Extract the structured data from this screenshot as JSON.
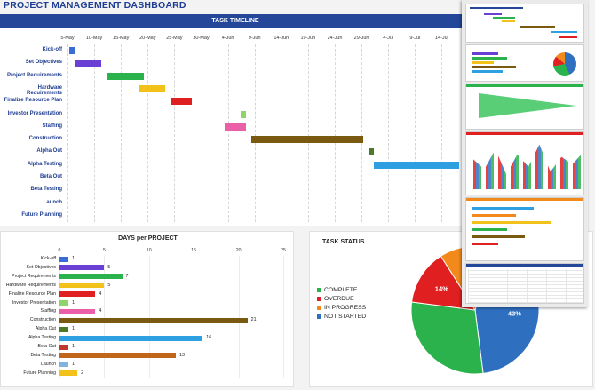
{
  "dashboard": {
    "title": "PROJECT MANAGEMENT DASHBOARD"
  },
  "timeline": {
    "header": "TASK TIMELINE",
    "dates": [
      "5-May",
      "10-May",
      "15-May",
      "20-May",
      "25-May",
      "30-May",
      "4-Jun",
      "9-Jun",
      "14-Jun",
      "19-Jun",
      "24-Jun",
      "29-Jun",
      "4-Jul",
      "9-Jul",
      "14-Jul"
    ],
    "tasks": [
      {
        "label": "Kick-off",
        "start_day": 1,
        "days": 1,
        "color": "#3a6bd6"
      },
      {
        "label": "Set Objectives",
        "start_day": 2,
        "days": 5,
        "color": "#6a3fd4"
      },
      {
        "label": "Project Requirements",
        "start_day": 8,
        "days": 7,
        "color": "#2bb24c"
      },
      {
        "label": "Hardware Requirements",
        "start_day": 14,
        "days": 5,
        "color": "#f2c21b"
      },
      {
        "label": "Finalize Resource Plan",
        "start_day": 20,
        "days": 4,
        "color": "#e02020"
      },
      {
        "label": "Investor Presentation",
        "start_day": 33,
        "days": 1,
        "color": "#8fd46b"
      },
      {
        "label": "Staffing",
        "start_day": 30,
        "days": 4,
        "color": "#ea5fa8"
      },
      {
        "label": "Construction",
        "start_day": 35,
        "days": 21,
        "color": "#7a5a10"
      },
      {
        "label": "Alpha Out",
        "start_day": 57,
        "days": 1,
        "color": "#4a7a2a"
      },
      {
        "label": "Alpha Testing",
        "start_day": 58,
        "days": 16,
        "color": "#2e9fe0"
      },
      {
        "label": "Beta Out",
        "start_day": 75,
        "days": 1,
        "color": "#c0392b"
      },
      {
        "label": "Beta Testing",
        "start_day": 0,
        "days": 0,
        "color": "#c0651a"
      },
      {
        "label": "Launch",
        "start_day": 0,
        "days": 0,
        "color": "#7fb3e0"
      },
      {
        "label": "Future Planning",
        "start_day": 0,
        "days": 0,
        "color": "#f2c21b"
      }
    ]
  },
  "days_per_project": {
    "title": "DAYS per PROJECT",
    "ticks": [
      "0",
      "5",
      "10",
      "15",
      "20",
      "25"
    ],
    "chart_data": {
      "type": "bar",
      "categories": [
        "Kick-off",
        "Set Objectives",
        "Project Requirements",
        "Hardware Requirements",
        "Finalize Resource Plan",
        "Investor Presentation",
        "Staffing",
        "Construction",
        "Alpha Out",
        "Alpha Testing",
        "Beta Out",
        "Beta Testing",
        "Launch",
        "Future Planning"
      ],
      "values": [
        1,
        5,
        7,
        5,
        4,
        1,
        4,
        21,
        1,
        16,
        1,
        13,
        1,
        2
      ],
      "colors": [
        "#3a6bd6",
        "#6a3fd4",
        "#2bb24c",
        "#f2c21b",
        "#e02020",
        "#8fd46b",
        "#ea5fa8",
        "#7a5a10",
        "#4a7a2a",
        "#2e9fe0",
        "#c0392b",
        "#c0651a",
        "#7fb3e0",
        "#f2c21b"
      ],
      "title": "DAYS per PROJECT",
      "xlim": [
        0,
        25
      ]
    }
  },
  "task_status": {
    "title": "TASK STATUS",
    "legend": [
      {
        "label": "COMPLETE",
        "color": "#2bb24c"
      },
      {
        "label": "OVERDUE",
        "color": "#e02020"
      },
      {
        "label": "IN PROGRESS",
        "color": "#f28a1b"
      },
      {
        "label": "NOT STARTED",
        "color": "#2f6fc0"
      }
    ],
    "chart_data": {
      "type": "pie",
      "labels": [
        "NOT STARTED",
        "COMPLETE",
        "OVERDUE",
        "IN PROGRESS"
      ],
      "values": [
        43,
        29,
        14,
        14
      ],
      "value_labels": [
        "43%",
        "",
        "14%",
        "14%"
      ],
      "colors": [
        "#2f6fc0",
        "#2bb24c",
        "#e02020",
        "#f28a1b"
      ]
    }
  }
}
